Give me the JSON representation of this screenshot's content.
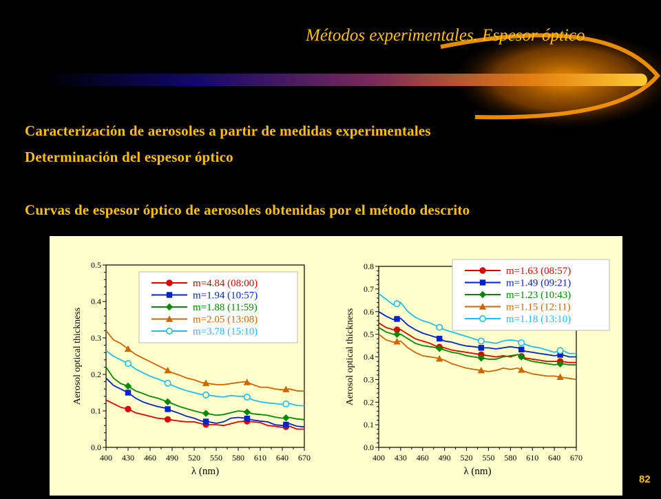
{
  "slide": {
    "title": "Métodos experimentales. Espesor óptico",
    "line1": "Caracterización  de aerosoles a partir de medidas experimentales",
    "line2": "Determinación del espesor óptico",
    "line3": "Curvas de espesor óptico de aerosoles obtenidas por el método descrito",
    "page_number": "82",
    "colors": {
      "title": "#ffc000",
      "background": "#000000",
      "panel": "#ffffcc"
    }
  },
  "chart_data": [
    {
      "type": "line",
      "xlabel": "λ (nm)",
      "ylabel": "Aerosol optical thickness",
      "xlim": [
        400,
        670
      ],
      "ylim": [
        0,
        0.5
      ],
      "xticks": [
        "400",
        "430",
        "460",
        "490",
        "520",
        "550",
        "580",
        "610",
        "640",
        "670"
      ],
      "yticks": [
        "0.0",
        "0.1",
        "0.2",
        "0.3",
        "0.4",
        "0.5"
      ],
      "marker_x": [
        430,
        484,
        536,
        592,
        645
      ],
      "series": [
        {
          "name": "m=4.84 (08:00)",
          "color": "#dd0000",
          "marker": "circle",
          "x": [
            400,
            410,
            420,
            430,
            440,
            450,
            460,
            470,
            480,
            490,
            500,
            510,
            520,
            530,
            540,
            550,
            560,
            570,
            580,
            590,
            600,
            610,
            620,
            630,
            640,
            650,
            660,
            670
          ],
          "y": [
            0.13,
            0.12,
            0.11,
            0.105,
            0.095,
            0.09,
            0.085,
            0.08,
            0.078,
            0.075,
            0.072,
            0.07,
            0.07,
            0.065,
            0.062,
            0.062,
            0.06,
            0.065,
            0.07,
            0.072,
            0.07,
            0.068,
            0.06,
            0.058,
            0.055,
            0.058,
            0.05,
            0.05
          ]
        },
        {
          "name": "m=1.94 (10:57)",
          "color": "#0022cc",
          "marker": "square",
          "x": [
            400,
            410,
            420,
            430,
            440,
            450,
            460,
            470,
            480,
            490,
            500,
            510,
            520,
            530,
            540,
            550,
            560,
            570,
            580,
            590,
            600,
            610,
            620,
            630,
            640,
            650,
            660,
            670
          ],
          "y": [
            0.19,
            0.17,
            0.16,
            0.15,
            0.135,
            0.125,
            0.118,
            0.112,
            0.108,
            0.1,
            0.093,
            0.085,
            0.08,
            0.072,
            0.07,
            0.066,
            0.07,
            0.08,
            0.082,
            0.08,
            0.075,
            0.072,
            0.07,
            0.062,
            0.06,
            0.065,
            0.058,
            0.056
          ]
        },
        {
          "name": "m=1.88 (11:59)",
          "color": "#008800",
          "marker": "diamond",
          "x": [
            400,
            410,
            420,
            430,
            440,
            450,
            460,
            470,
            480,
            490,
            500,
            510,
            520,
            530,
            540,
            550,
            560,
            570,
            580,
            590,
            600,
            610,
            620,
            630,
            640,
            650,
            660,
            670
          ],
          "y": [
            0.22,
            0.19,
            0.175,
            0.168,
            0.155,
            0.148,
            0.14,
            0.135,
            0.128,
            0.12,
            0.112,
            0.106,
            0.1,
            0.095,
            0.092,
            0.088,
            0.09,
            0.095,
            0.1,
            0.098,
            0.092,
            0.09,
            0.088,
            0.083,
            0.08,
            0.082,
            0.078,
            0.076
          ]
        },
        {
          "name": "m=2.05 (13:08)",
          "color": "#cc6600",
          "marker": "triangle",
          "x": [
            400,
            410,
            420,
            430,
            440,
            450,
            460,
            470,
            480,
            490,
            500,
            510,
            520,
            530,
            540,
            550,
            560,
            570,
            580,
            590,
            600,
            610,
            620,
            630,
            640,
            650,
            660,
            670
          ],
          "y": [
            0.32,
            0.295,
            0.285,
            0.27,
            0.255,
            0.245,
            0.235,
            0.225,
            0.215,
            0.205,
            0.198,
            0.19,
            0.185,
            0.178,
            0.175,
            0.172,
            0.172,
            0.175,
            0.178,
            0.18,
            0.172,
            0.165,
            0.165,
            0.16,
            0.158,
            0.16,
            0.155,
            0.154
          ]
        },
        {
          "name": "m=3.78 (15:10)",
          "color": "#22bbff",
          "marker": "circle-open",
          "x": [
            400,
            410,
            420,
            430,
            440,
            450,
            460,
            470,
            480,
            490,
            500,
            510,
            520,
            530,
            540,
            550,
            560,
            570,
            580,
            590,
            600,
            610,
            620,
            630,
            640,
            650,
            660,
            670
          ],
          "y": [
            0.265,
            0.25,
            0.24,
            0.23,
            0.215,
            0.205,
            0.195,
            0.188,
            0.18,
            0.17,
            0.162,
            0.155,
            0.15,
            0.145,
            0.143,
            0.14,
            0.138,
            0.142,
            0.14,
            0.14,
            0.13,
            0.125,
            0.122,
            0.12,
            0.118,
            0.12,
            0.115,
            0.114
          ]
        }
      ]
    },
    {
      "type": "line",
      "xlabel": "λ (nm)",
      "ylabel": "Aerosol optical thickness",
      "xlim": [
        400,
        670
      ],
      "ylim": [
        0,
        0.8
      ],
      "xticks": [
        "400",
        "430",
        "460",
        "490",
        "520",
        "550",
        "580",
        "610",
        "640",
        "670"
      ],
      "yticks": [
        "0.0",
        "0.1",
        "0.2",
        "0.3",
        "0.4",
        "0.5",
        "0.6",
        "0.7",
        "0.8"
      ],
      "marker_x": [
        425,
        483,
        540,
        595,
        648
      ],
      "series": [
        {
          "name": "m=1.63 (08:57)",
          "color": "#dd0000",
          "marker": "circle",
          "x": [
            400,
            410,
            420,
            430,
            440,
            450,
            460,
            470,
            480,
            490,
            500,
            510,
            520,
            530,
            540,
            550,
            560,
            570,
            580,
            590,
            600,
            610,
            620,
            630,
            640,
            650,
            660,
            670
          ],
          "y": [
            0.55,
            0.53,
            0.52,
            0.52,
            0.5,
            0.48,
            0.47,
            0.46,
            0.445,
            0.44,
            0.43,
            0.425,
            0.42,
            0.415,
            0.41,
            0.405,
            0.4,
            0.405,
            0.4,
            0.41,
            0.395,
            0.39,
            0.385,
            0.38,
            0.38,
            0.38,
            0.375,
            0.375
          ]
        },
        {
          "name": "m=1.49 (09:21)",
          "color": "#0022cc",
          "marker": "square",
          "x": [
            400,
            410,
            420,
            430,
            440,
            450,
            460,
            470,
            480,
            490,
            500,
            510,
            520,
            530,
            540,
            550,
            560,
            570,
            580,
            590,
            600,
            610,
            620,
            630,
            640,
            650,
            660,
            670
          ],
          "y": [
            0.6,
            0.58,
            0.565,
            0.57,
            0.54,
            0.52,
            0.505,
            0.495,
            0.485,
            0.47,
            0.465,
            0.455,
            0.448,
            0.445,
            0.44,
            0.44,
            0.435,
            0.44,
            0.445,
            0.44,
            0.425,
            0.42,
            0.415,
            0.41,
            0.405,
            0.41,
            0.4,
            0.4
          ]
        },
        {
          "name": "m=1.23 (10:43)",
          "color": "#008800",
          "marker": "diamond",
          "x": [
            400,
            410,
            420,
            430,
            440,
            450,
            460,
            470,
            480,
            490,
            500,
            510,
            520,
            530,
            540,
            550,
            560,
            570,
            580,
            590,
            600,
            610,
            620,
            630,
            640,
            650,
            660,
            670
          ],
          "y": [
            0.53,
            0.51,
            0.5,
            0.5,
            0.48,
            0.46,
            0.45,
            0.445,
            0.44,
            0.43,
            0.42,
            0.415,
            0.405,
            0.4,
            0.395,
            0.39,
            0.39,
            0.4,
            0.405,
            0.41,
            0.39,
            0.38,
            0.375,
            0.37,
            0.365,
            0.37,
            0.365,
            0.365
          ]
        },
        {
          "name": "m=1.15 (12:11)",
          "color": "#cc6600",
          "marker": "triangle",
          "x": [
            400,
            410,
            420,
            430,
            440,
            450,
            460,
            470,
            480,
            490,
            500,
            510,
            520,
            530,
            540,
            550,
            560,
            570,
            580,
            590,
            600,
            610,
            620,
            630,
            640,
            650,
            660,
            670
          ],
          "y": [
            0.5,
            0.475,
            0.465,
            0.47,
            0.44,
            0.42,
            0.405,
            0.4,
            0.395,
            0.385,
            0.37,
            0.36,
            0.35,
            0.345,
            0.34,
            0.335,
            0.34,
            0.35,
            0.345,
            0.35,
            0.335,
            0.325,
            0.32,
            0.315,
            0.315,
            0.31,
            0.305,
            0.3
          ]
        },
        {
          "name": "m=1.18 (13:10)",
          "color": "#22bbff",
          "marker": "circle-open",
          "x": [
            400,
            410,
            420,
            430,
            440,
            450,
            460,
            470,
            480,
            490,
            500,
            510,
            520,
            530,
            540,
            550,
            560,
            570,
            580,
            590,
            600,
            610,
            620,
            630,
            640,
            650,
            660,
            670
          ],
          "y": [
            0.68,
            0.655,
            0.63,
            0.64,
            0.6,
            0.575,
            0.56,
            0.55,
            0.535,
            0.52,
            0.51,
            0.5,
            0.49,
            0.48,
            0.47,
            0.465,
            0.46,
            0.47,
            0.475,
            0.47,
            0.455,
            0.445,
            0.44,
            0.43,
            0.42,
            0.43,
            0.415,
            0.415
          ]
        }
      ]
    }
  ]
}
